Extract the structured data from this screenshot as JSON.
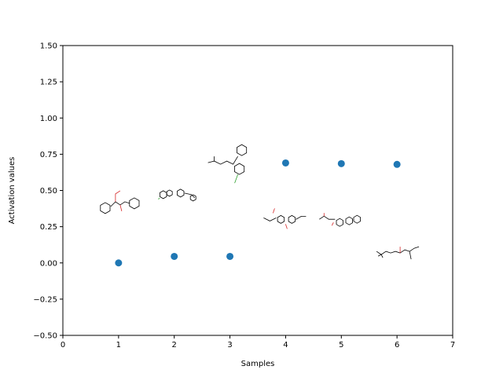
{
  "chart_data": {
    "type": "scatter",
    "xlabel": "Samples",
    "ylabel": "Activation values",
    "xlim": [
      0,
      7
    ],
    "ylim": [
      -0.5,
      1.5
    ],
    "x_ticks": [
      "0",
      "1",
      "2",
      "3",
      "4",
      "5",
      "6",
      "7"
    ],
    "y_ticks": [
      "−0.50",
      "−0.25",
      "0.00",
      "0.25",
      "0.50",
      "0.75",
      "1.00",
      "1.25",
      "1.50"
    ],
    "grid": false,
    "colors": {
      "points": "#1f77b4"
    },
    "series": [
      {
        "x": [
          1,
          2,
          3,
          4,
          5,
          6
        ],
        "y": [
          0.0,
          0.045,
          0.045,
          0.69,
          0.685,
          0.68
        ]
      }
    ],
    "annotations": [
      {
        "kind": "molecule-structure-image",
        "x": 1.0,
        "y": 0.4
      },
      {
        "kind": "molecule-structure-image",
        "x": 2.0,
        "y": 0.46
      },
      {
        "kind": "molecule-structure-image",
        "x": 3.0,
        "y": 0.67
      },
      {
        "kind": "molecule-structure-image",
        "x": 4.0,
        "y": 0.3
      },
      {
        "kind": "molecule-structure-image",
        "x": 5.0,
        "y": 0.29
      },
      {
        "kind": "molecule-structure-image",
        "x": 6.0,
        "y": 0.09
      }
    ]
  }
}
